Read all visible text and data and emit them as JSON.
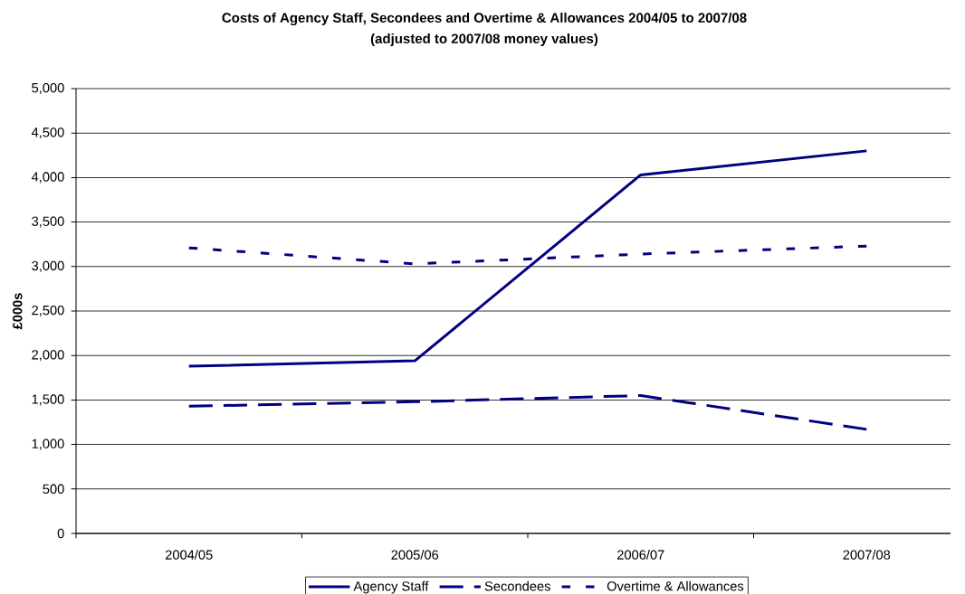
{
  "chart_data": {
    "type": "line",
    "title": "Costs of Agency Staff, Secondees and Overtime & Allowances 2004/05 to 2007/08",
    "subtitle": "(adjusted to 2007/08 money values)",
    "ylabel": "£000s",
    "categories": [
      "2004/05",
      "2005/06",
      "2006/07",
      "2007/08"
    ],
    "series": [
      {
        "name": "Agency Staff",
        "color": "#000080",
        "line_style": "solid",
        "values": [
          1880,
          1940,
          4030,
          4300
        ]
      },
      {
        "name": "Secondees",
        "color": "#000080",
        "line_style": "dashed",
        "values": [
          1430,
          1480,
          1550,
          1170
        ]
      },
      {
        "name": "Overtime & Allowances",
        "color": "#000080",
        "line_style": "dotted",
        "values": [
          3210,
          3030,
          3140,
          3230
        ]
      }
    ],
    "ylim": [
      0,
      5000
    ],
    "yticks": [
      0,
      500,
      {
        "value": 1000,
        "label": "1,000"
      },
      {
        "value": 1500,
        "label": "1,500"
      },
      {
        "value": 2000,
        "label": "2,000"
      },
      {
        "value": 2500,
        "label": "2,500"
      },
      {
        "value": 3000,
        "label": "3,000"
      },
      {
        "value": 3500,
        "label": "3,500"
      },
      {
        "value": 4000,
        "label": "4,000"
      },
      {
        "value": 4500,
        "label": "4,500"
      },
      {
        "value": 5000,
        "label": "5,000"
      }
    ],
    "grid": "y",
    "legend": "bottom"
  }
}
